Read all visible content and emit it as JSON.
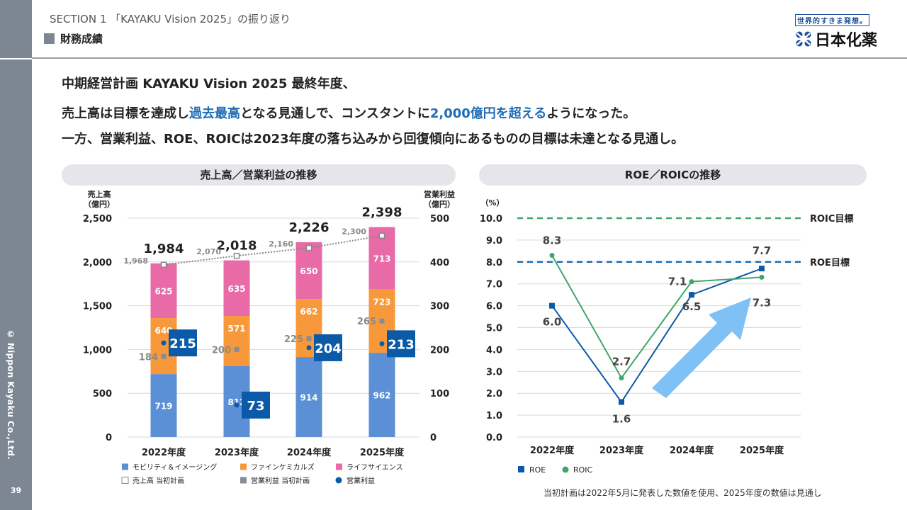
{
  "header": {
    "section": "SECTION 1 「KAYAKU Vision 2025」の振り返り",
    "subtitle": "財務成績"
  },
  "logo": {
    "tagline": "世界的すきま発想。",
    "name": "日本化薬"
  },
  "sidebar": {
    "copyright": "© Nippon Kayaku Co.,Ltd.",
    "page": "39"
  },
  "message": {
    "line1": "中期経営計画 KAYAKU Vision 2025 最終年度、",
    "line2_a": "売上高は目標を達成し",
    "line2_b": "過去最高",
    "line2_c": "となる見通しで、コンスタントに",
    "line2_d": "2,000億円を超える",
    "line2_e": "ようになった。",
    "line3": "一方、営業利益、ROE、ROICは2023年度の落ち込みから回復傾向にあるものの目標は未達となる見通し。"
  },
  "footnote": "当初計画は2022年5月に発表した数値を使用、2025年度の数値は見通し",
  "chart_data": [
    {
      "type": "bar",
      "title": "売上高／営業利益の推移",
      "ylabel": "売上高\n（億円）",
      "ylabel_lines": [
        "売上高",
        "（億円）"
      ],
      "y2label_lines": [
        "営業利益",
        "（億円）"
      ],
      "ylim": [
        0,
        2500
      ],
      "y2lim": [
        0,
        500
      ],
      "yticks": [
        "0",
        "500",
        "1,000",
        "1,500",
        "2,000",
        "2,500"
      ],
      "y2ticks": [
        "0",
        "100",
        "200",
        "300",
        "400",
        "500"
      ],
      "categories": [
        "2022年度",
        "2023年度",
        "2024年度",
        "2025年度"
      ],
      "series": [
        {
          "name": "モビリティ＆イメージング",
          "values": [
            719,
            812,
            914,
            962
          ],
          "color": "#5b8fd6"
        },
        {
          "name": "ファインケミカルズ",
          "values": [
            640,
            571,
            662,
            723
          ],
          "color": "#f7993a"
        },
        {
          "name": "ライフサイエンス",
          "values": [
            625,
            635,
            650,
            713
          ],
          "color": "#e86aa6"
        }
      ],
      "totals": [
        "1,984",
        "2,018",
        "2,226",
        "2,398"
      ],
      "sales_plan": {
        "name": "売上高 当初計画",
        "values": [
          1968,
          2070,
          2160,
          2300
        ],
        "labels": [
          "1,968",
          "2,070",
          "2,160",
          "2,300"
        ]
      },
      "op_plan": {
        "name": "営業利益 当初計画",
        "values": [
          184,
          200,
          225,
          265
        ],
        "color": "#858d97"
      },
      "op_profit": {
        "name": "営業利益",
        "values": [
          215,
          73,
          204,
          213
        ],
        "color": "#0b5aa8"
      },
      "grid": true,
      "legend": "bottom"
    },
    {
      "type": "line",
      "title": "ROE／ROICの推移",
      "ylabel": "（%）",
      "ylim": [
        0,
        10
      ],
      "yticks": [
        "0.0",
        "1.0",
        "2.0",
        "3.0",
        "4.0",
        "5.0",
        "6.0",
        "7.0",
        "8.0",
        "9.0",
        "10.0"
      ],
      "categories": [
        "2022年度",
        "2023年度",
        "2024年度",
        "2025年度"
      ],
      "series": [
        {
          "name": "ROE",
          "values": [
            6.0,
            1.6,
            6.5,
            7.7
          ],
          "labels": [
            "6.0",
            "1.6",
            "6.5",
            "7.7"
          ],
          "color": "#0b5aa8",
          "marker": "square"
        },
        {
          "name": "ROIC",
          "values": [
            8.3,
            2.7,
            7.1,
            7.3
          ],
          "labels": [
            "8.3",
            "2.7",
            "7.1",
            "7.3"
          ],
          "color": "#3fa66a",
          "marker": "circle"
        }
      ],
      "targets": [
        {
          "name": "ROIC目標",
          "value": 10,
          "color": "#3fa66a"
        },
        {
          "name": "ROE目標",
          "value": 8,
          "color": "#1f6db5"
        }
      ],
      "grid": true,
      "legend": "bottom-left"
    }
  ]
}
